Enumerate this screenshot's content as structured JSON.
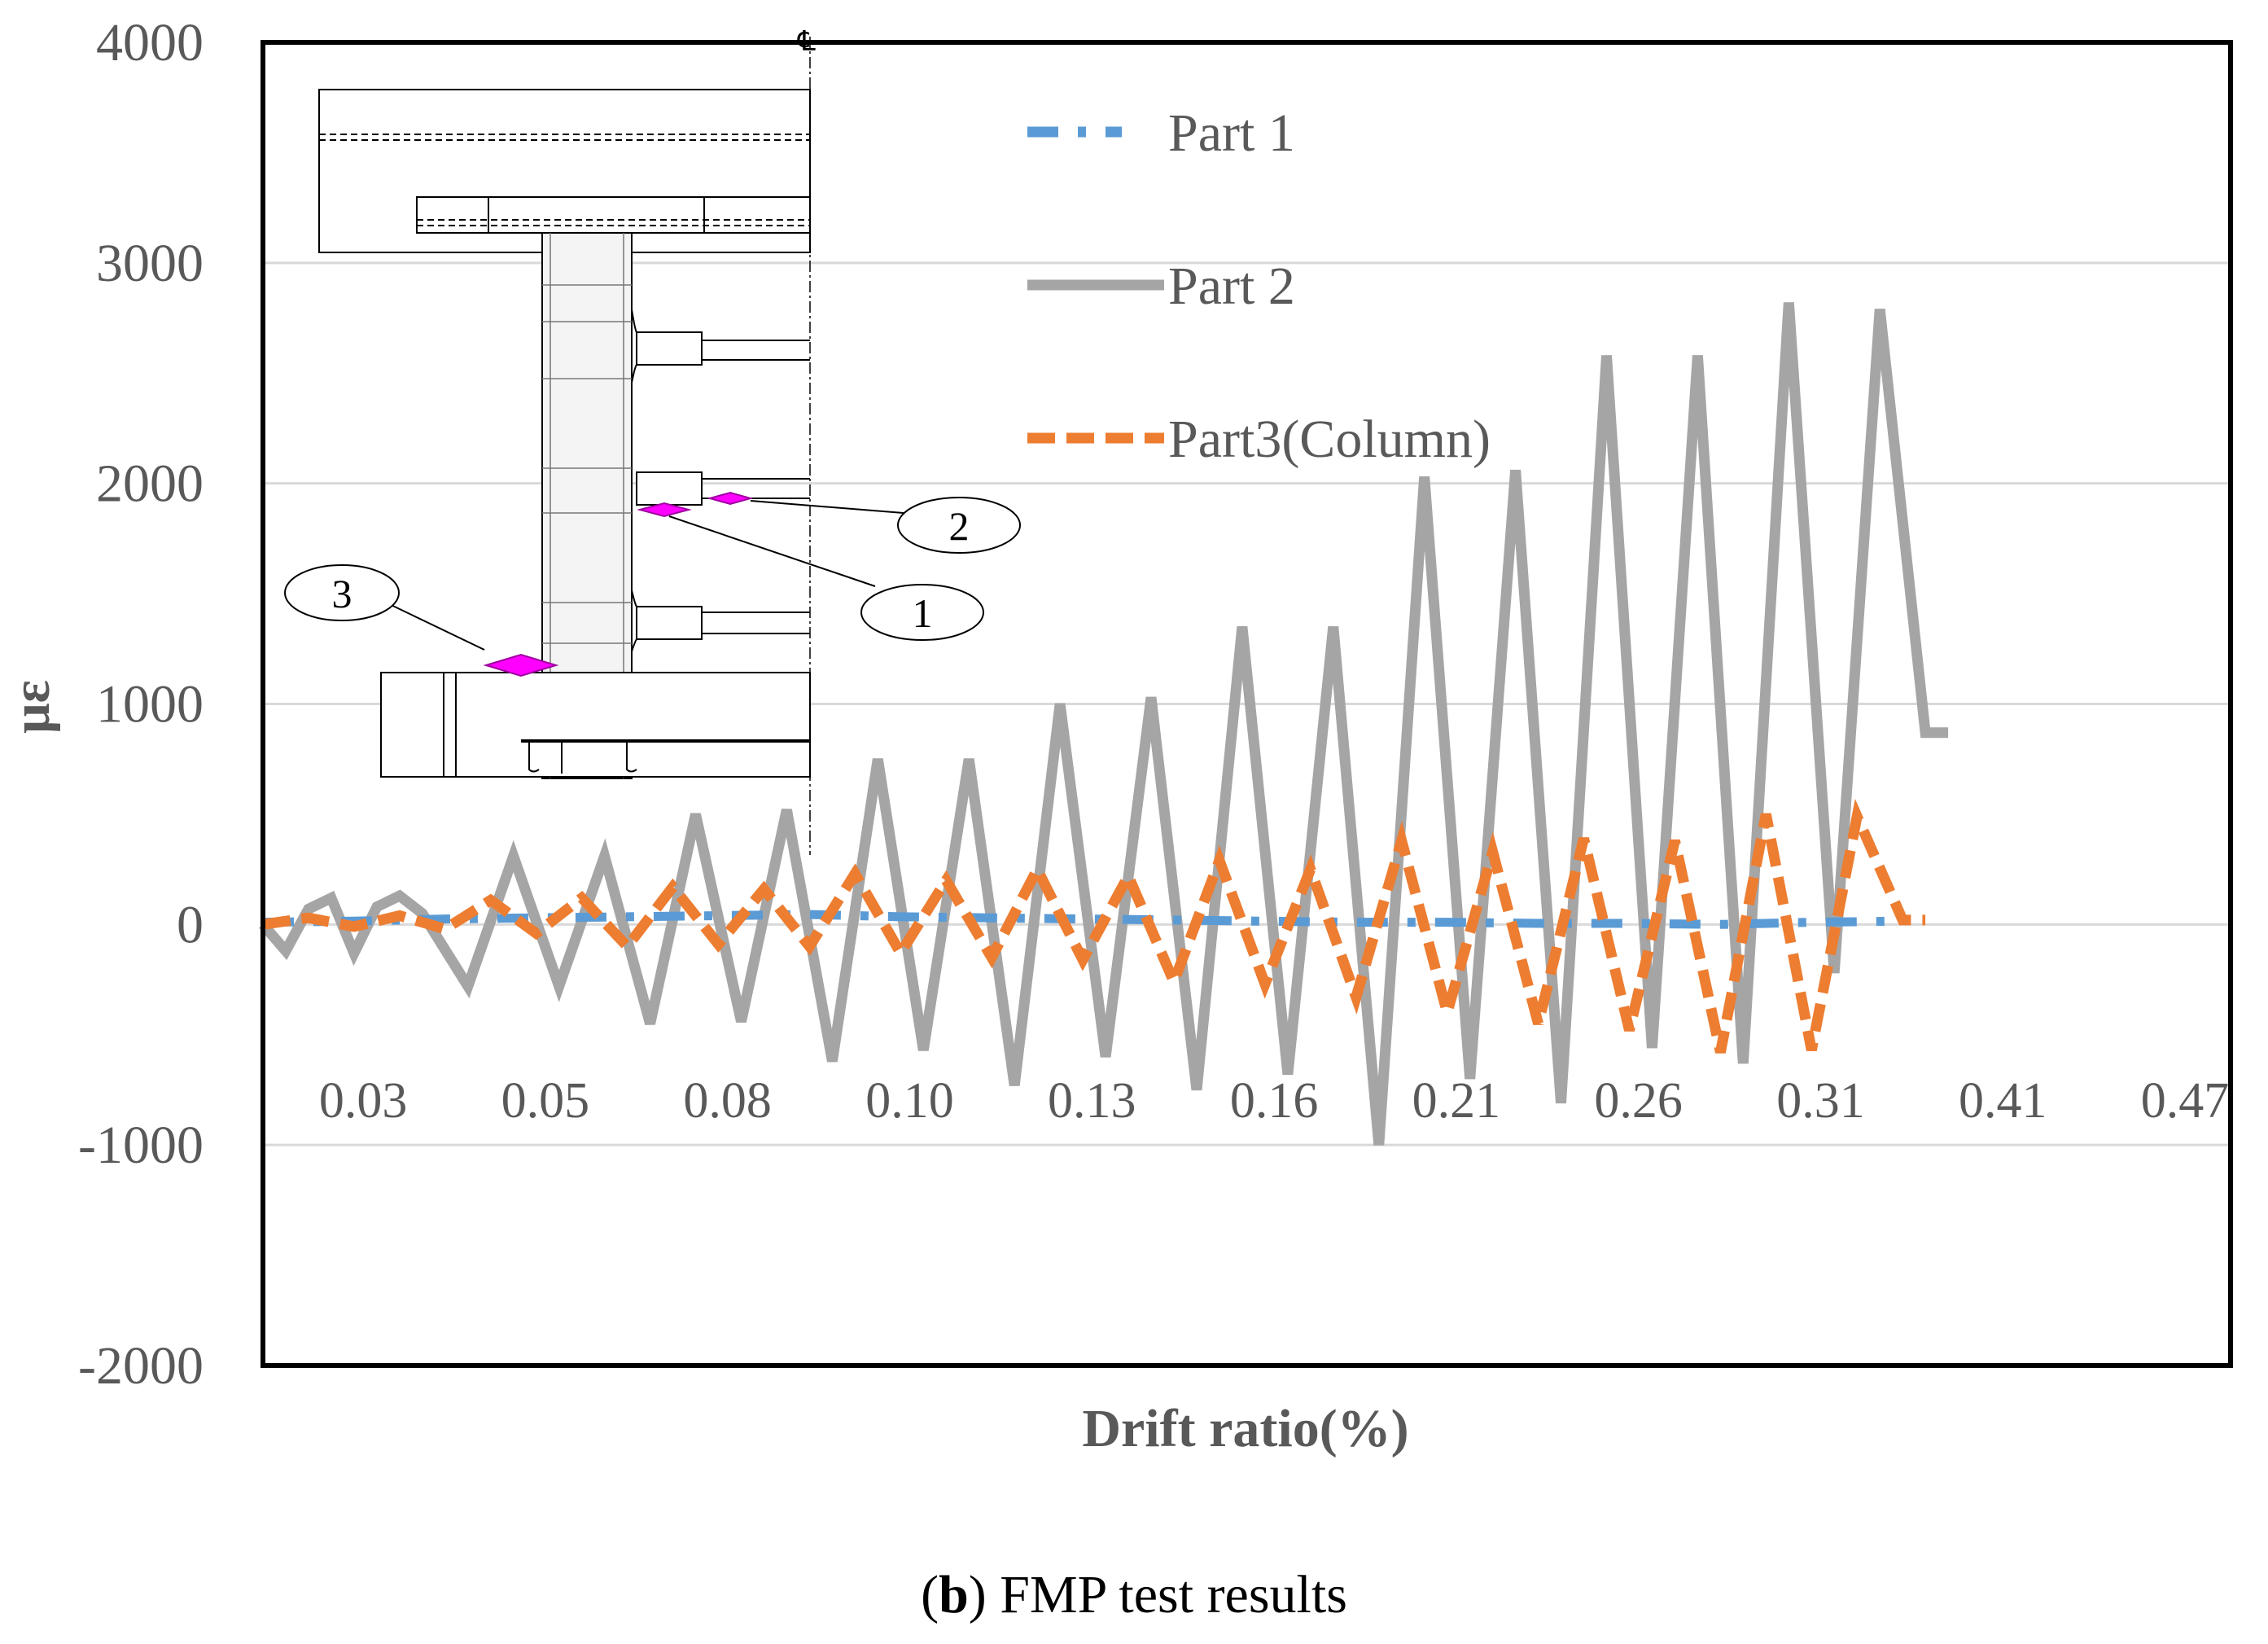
{
  "chart_data": {
    "type": "line",
    "title": "",
    "xlabel": "Drift ratio(%)",
    "ylabel": "με",
    "ylim": [
      -2000,
      4000
    ],
    "y_ticks": [
      4000,
      3000,
      2000,
      1000,
      0,
      -1000,
      -2000
    ],
    "x_tick_labels": [
      "0.03",
      "0.05",
      "0.08",
      "0.10",
      "0.13",
      "0.16",
      "0.21",
      "0.26",
      "0.31",
      "0.41",
      "0.47"
    ],
    "x_range": [
      0,
      10.8
    ],
    "grid": "horizontal",
    "legend_position": "top-center",
    "series": [
      {
        "name": "Part 1",
        "style": "dash-dot",
        "color": "#5b9bd5",
        "x": [
          0,
          0.5,
          1,
          1.5,
          2,
          2.5,
          3,
          3.5,
          4,
          4.5,
          5,
          5.5,
          6,
          6.5,
          7,
          7.5,
          8,
          8.5,
          9
        ],
        "y": [
          10,
          15,
          25,
          30,
          35,
          40,
          45,
          35,
          30,
          25,
          20,
          15,
          10,
          10,
          5,
          5,
          0,
          10,
          15
        ]
      },
      {
        "name": "Part 2",
        "style": "solid",
        "color": "#a5a5a5",
        "x": [
          0,
          0.125,
          0.25,
          0.375,
          0.5,
          0.625,
          0.75,
          0.875,
          1.125,
          1.375,
          1.625,
          1.875,
          2.125,
          2.375,
          2.625,
          2.875,
          3.125,
          3.375,
          3.625,
          3.875,
          4.125,
          4.375,
          4.625,
          4.875,
          5.125,
          5.375,
          5.625,
          5.875,
          6.125,
          6.375,
          6.625,
          6.875,
          7.125,
          7.375,
          7.625,
          7.875,
          8.125,
          8.375,
          8.625,
          8.875,
          9.125,
          9.25
        ],
        "y": [
          0,
          -120,
          70,
          120,
          -130,
          80,
          130,
          50,
          -280,
          310,
          -280,
          310,
          -450,
          500,
          -440,
          520,
          -620,
          750,
          -570,
          750,
          -730,
          1000,
          -600,
          1030,
          -750,
          1350,
          -680,
          1350,
          -1000,
          2030,
          -700,
          2060,
          -810,
          2580,
          -560,
          2580,
          -630,
          2820,
          -220,
          2790,
          870,
          870
        ]
      },
      {
        "name": "Part3(Column)",
        "style": "dashed",
        "color": "#ed7d31",
        "x": [
          0,
          0.25,
          0.5,
          0.75,
          1,
          1.25,
          1.5,
          1.75,
          2,
          2.25,
          2.5,
          2.75,
          3,
          3.25,
          3.5,
          3.75,
          4,
          4.25,
          4.5,
          4.75,
          5,
          5.25,
          5.5,
          5.75,
          6,
          6.25,
          6.5,
          6.75,
          7,
          7.25,
          7.5,
          7.75,
          8,
          8.25,
          8.5,
          8.75,
          9,
          9.125
        ],
        "y": [
          0,
          30,
          -10,
          40,
          -20,
          110,
          -40,
          120,
          -100,
          170,
          -90,
          160,
          -100,
          230,
          -130,
          200,
          -150,
          250,
          -160,
          220,
          -260,
          290,
          -270,
          250,
          -330,
          380,
          -400,
          330,
          -450,
          390,
          -480,
          380,
          -580,
          500,
          -570,
          490,
          20,
          20
        ]
      }
    ]
  },
  "inset": {
    "callouts": [
      "1",
      "2",
      "3"
    ]
  },
  "caption": {
    "bold": "b",
    "open": "(",
    "close": ")",
    "text": " FMP test results"
  }
}
